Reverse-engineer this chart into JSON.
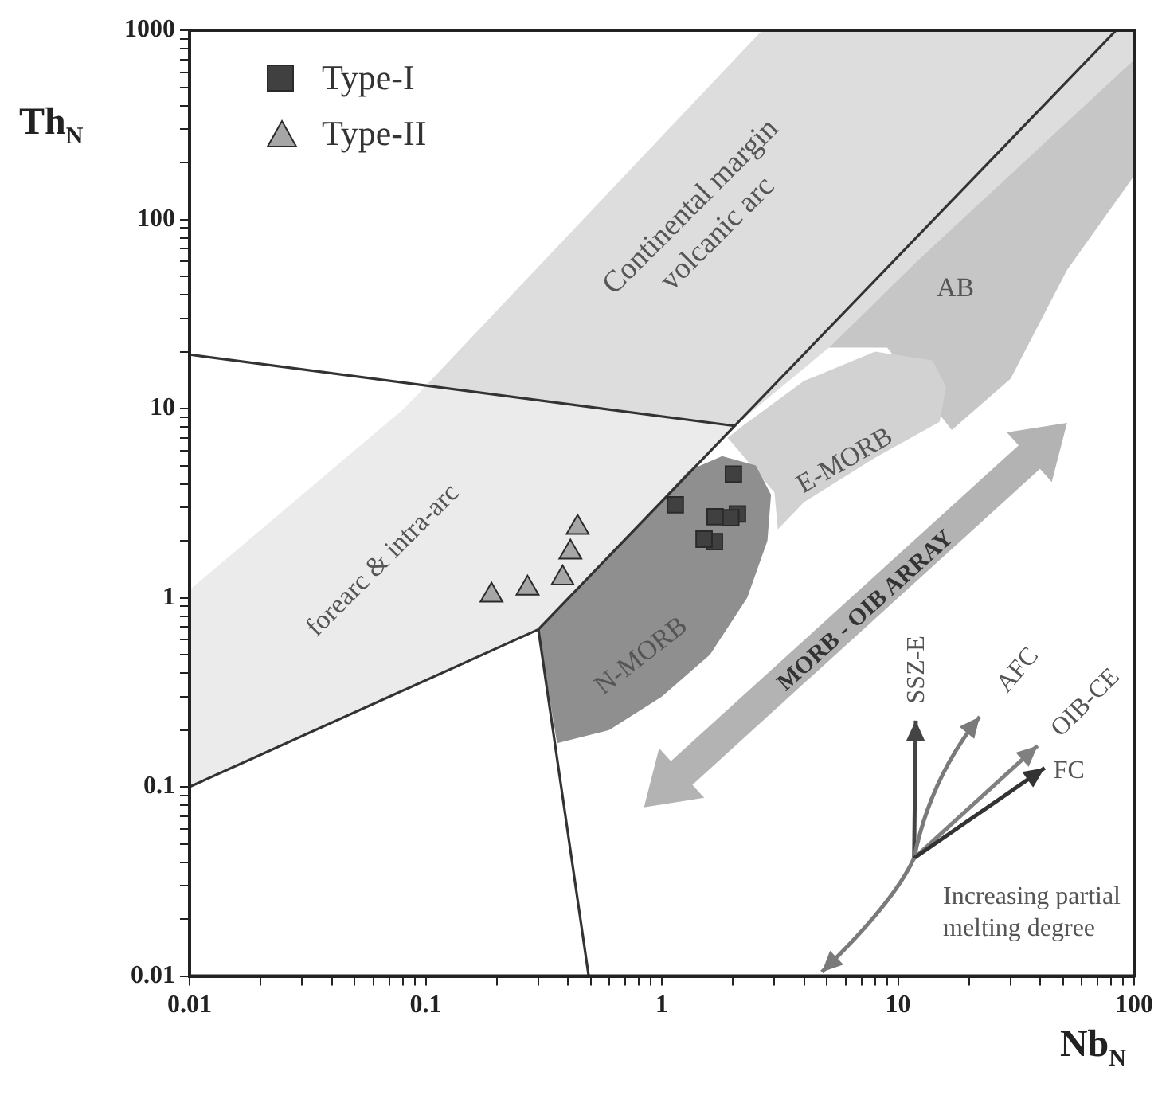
{
  "chart_data": {
    "type": "scatter",
    "xlabel": "Nb$_{N}$",
    "ylabel": "Th$_{N}$",
    "log": "xy",
    "grid": false,
    "legend": "top left",
    "xlim": [
      0.01,
      100
    ],
    "ylim": [
      0.01,
      1000
    ],
    "xticks": [
      0.01,
      {
        "value": 0.02,
        "label": null
      },
      {
        "value": 0.03,
        "label": null
      },
      {
        "value": 0.04,
        "label": null
      },
      {
        "value": 0.05,
        "label": null
      },
      {
        "value": 0.06,
        "label": null
      },
      {
        "value": 0.07,
        "label": null
      },
      {
        "value": 0.08,
        "label": null
      },
      {
        "value": 0.09,
        "label": null
      },
      0.1,
      {
        "value": 0.2,
        "label": null
      },
      {
        "value": 0.3,
        "label": null
      },
      {
        "value": 0.4,
        "label": null
      },
      {
        "value": 0.5,
        "label": null
      },
      {
        "value": 0.6,
        "label": null
      },
      {
        "value": 0.7,
        "label": null
      },
      {
        "value": 0.8,
        "label": null
      },
      {
        "value": 0.9,
        "label": null
      },
      1,
      {
        "value": 2,
        "label": null
      },
      {
        "value": 3,
        "label": null
      },
      {
        "value": 4,
        "label": null
      },
      {
        "value": 5,
        "label": null
      },
      {
        "value": 6,
        "label": null
      },
      {
        "value": 7,
        "label": null
      },
      {
        "value": 8,
        "label": null
      },
      {
        "value": 9,
        "label": null
      },
      10,
      {
        "value": 20,
        "label": null
      },
      {
        "value": 30,
        "label": null
      },
      {
        "value": 40,
        "label": null
      },
      {
        "value": 50,
        "label": null
      },
      {
        "value": 60,
        "label": null
      },
      {
        "value": 70,
        "label": null
      },
      {
        "value": 80,
        "label": null
      },
      {
        "value": 90,
        "label": null
      },
      100
    ],
    "yticks": [
      0.01,
      {
        "value": 0.02,
        "label": null
      },
      {
        "value": 0.03,
        "label": null
      },
      {
        "value": 0.04,
        "label": null
      },
      {
        "value": 0.05,
        "label": null
      },
      {
        "value": 0.06,
        "label": null
      },
      {
        "value": 0.07,
        "label": null
      },
      {
        "value": 0.08,
        "label": null
      },
      {
        "value": 0.09,
        "label": null
      },
      0.1,
      {
        "value": 0.2,
        "label": null
      },
      {
        "value": 0.3,
        "label": null
      },
      {
        "value": 0.4,
        "label": null
      },
      {
        "value": 0.5,
        "label": null
      },
      {
        "value": 0.6,
        "label": null
      },
      {
        "value": 0.7,
        "label": null
      },
      {
        "value": 0.8,
        "label": null
      },
      {
        "value": 0.9,
        "label": null
      },
      1,
      {
        "value": 2,
        "label": null
      },
      {
        "value": 3,
        "label": null
      },
      {
        "value": 4,
        "label": null
      },
      {
        "value": 5,
        "label": null
      },
      {
        "value": 6,
        "label": null
      },
      {
        "value": 7,
        "label": null
      },
      {
        "value": 8,
        "label": null
      },
      {
        "value": 9,
        "label": null
      },
      10,
      {
        "value": 20,
        "label": null
      },
      {
        "value": 30,
        "label": null
      },
      {
        "value": 40,
        "label": null
      },
      {
        "value": 50,
        "label": null
      },
      {
        "value": 60,
        "label": null
      },
      {
        "value": 70,
        "label": null
      },
      {
        "value": 80,
        "label": null
      },
      {
        "value": 90,
        "label": null
      },
      100,
      {
        "value": 200,
        "label": null
      },
      {
        "value": 300,
        "label": null
      },
      {
        "value": 400,
        "label": null
      },
      {
        "value": 500,
        "label": null
      },
      {
        "value": 600,
        "label": null
      },
      {
        "value": 700,
        "label": null
      },
      {
        "value": 800,
        "label": null
      },
      {
        "value": 900,
        "label": null
      },
      1000
    ],
    "annotations": [
      "Continental margin volcanic arc",
      "forearc & intra-arc",
      "AB",
      "E-MORB",
      "N-MORB",
      "MORB - OIB ARRAY",
      "SSZ-E",
      "AFC",
      "OIB-CE",
      "FC",
      "Increasing partial melting degree"
    ],
    "series": [
      {
        "type": "area",
        "color": "#dddddd",
        "x": [
          0.1,
          2.66,
          100,
          100,
          12,
          5.1,
          2.03
        ],
        "values": [
          13.2,
          1000,
          1000,
          700,
          60,
          21,
          8.1
        ]
      },
      {
        "type": "area",
        "color": "#ebebeb",
        "x": [
          0.01,
          0.3,
          2.03,
          0.1,
          0.081,
          0.01
        ],
        "values": [
          0.1,
          0.68,
          8.1,
          13.2,
          10,
          1.1
        ]
      },
      {
        "type": "area",
        "color": "#c6c6c6",
        "x": [
          5.1,
          9,
          16.9,
          30,
          52,
          100,
          100,
          12
        ],
        "values": [
          21,
          21,
          7.7,
          14.4,
          54,
          170,
          700,
          60
        ]
      },
      {
        "type": "area",
        "color": "#d2d2d2",
        "x": [
          2.2,
          4,
          8,
          14,
          16,
          15,
          8,
          4,
          3.1,
          3.0,
          1.9
        ],
        "values": [
          8.1,
          14,
          20,
          18,
          13,
          8.5,
          5.5,
          3.2,
          2.3,
          3.6,
          7.0
        ]
      },
      {
        "type": "area",
        "color": "#8f8f8f",
        "x": [
          0.3,
          1.0,
          1.3,
          1.8,
          2.5,
          2.9,
          2.8,
          2.3,
          1.6,
          1.0,
          0.6,
          0.36
        ],
        "values": [
          0.68,
          3.3,
          4.7,
          5.6,
          5,
          3.5,
          2,
          1,
          0.5,
          0.3,
          0.2,
          0.17
        ]
      },
      {
        "type": "line",
        "color": "#333333",
        "x": [
          0.01,
          0.3,
          84
        ],
        "values": [
          0.1,
          0.68,
          1000
        ]
      },
      {
        "type": "line",
        "color": "#333333",
        "x": [
          0.3,
          0.49
        ],
        "values": [
          0.68,
          0.01
        ]
      },
      {
        "type": "line",
        "color": "#333333",
        "x": [
          0.01,
          2.03
        ],
        "values": [
          19.3,
          8.1
        ]
      },
      {
        "type": "scatter",
        "name": "Type-I",
        "color": "#404040",
        "marker": "square",
        "x": [
          1.14,
          2.01,
          1.68,
          2.09,
          1.96,
          1.67,
          1.51
        ],
        "values": [
          3.1,
          4.5,
          2.68,
          2.77,
          2.65,
          1.98,
          2.04
        ]
      },
      {
        "type": "scatter",
        "name": "Type-II",
        "color": "#a6a6a6",
        "marker": "triangle",
        "x": [
          0.19,
          0.27,
          0.38,
          0.41,
          0.44
        ],
        "values": [
          1.03,
          1.12,
          1.27,
          1.74,
          2.35
        ]
      }
    ]
  }
}
